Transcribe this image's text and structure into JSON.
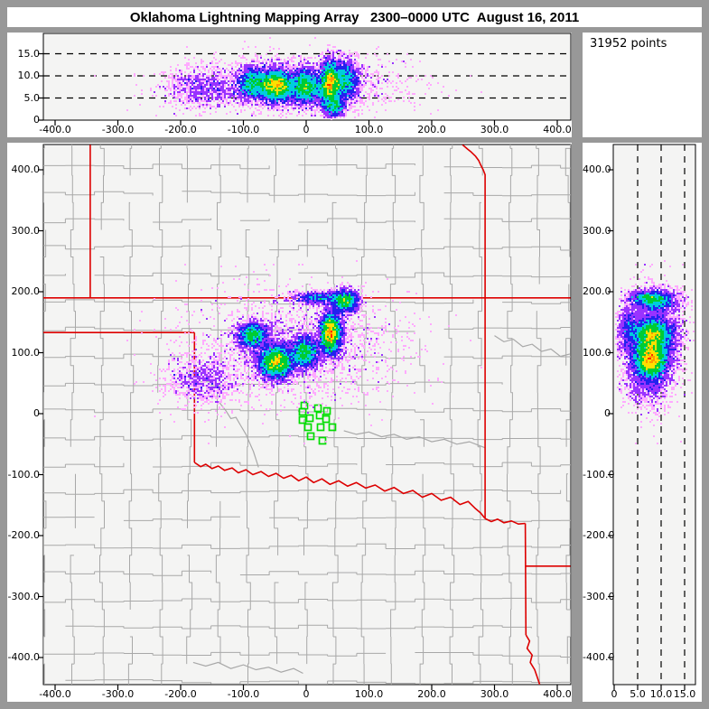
{
  "title": "Oklahoma Lightning Mapping Array   2300–0000 UTC  August 16, 2011",
  "points_label": "31952 points",
  "colors": {
    "window_bg": "#989898",
    "panel_bg": "#ffffff",
    "plot_bg": "#f4f4f3",
    "axis": "#000000",
    "county_line": "#a8a8a8",
    "state_border": "#dd0000",
    "station": "#00dd00",
    "ramp": {
      "pink": "#ffaaff",
      "violet": "#9933ff",
      "blue": "#2222ee",
      "cyan": "#00ccdd",
      "green": "#00cc33",
      "yellow": "#ffe000",
      "orange": "#ff9900",
      "red": "#ff2a00"
    }
  },
  "panels": {
    "top": {
      "y_ticks": [
        {
          "v": 15,
          "label": "15.0"
        },
        {
          "v": 10,
          "label": "10.0"
        },
        {
          "v": 5,
          "label": "5.0"
        },
        {
          "v": 0,
          "label": "0"
        }
      ],
      "x_ticks": [
        {
          "v": -400,
          "label": "-400.0"
        },
        {
          "v": -300,
          "label": "-300.0"
        },
        {
          "v": -200,
          "label": "-200.0"
        },
        {
          "v": -100,
          "label": "-100.0"
        },
        {
          "v": 0,
          "label": "0"
        },
        {
          "v": 100,
          "label": "100.0"
        },
        {
          "v": 200,
          "label": "200.0"
        },
        {
          "v": 300,
          "label": "300.0"
        },
        {
          "v": 400,
          "label": "400.0"
        }
      ],
      "dashed_alt_km": [
        5,
        10,
        15
      ]
    },
    "main": {
      "y_ticks": [
        {
          "v": 400,
          "label": "400.0"
        },
        {
          "v": 300,
          "label": "300.0"
        },
        {
          "v": 200,
          "label": "200.0"
        },
        {
          "v": 100,
          "label": "100.0"
        },
        {
          "v": 0,
          "label": "0"
        },
        {
          "v": -100,
          "label": "-100.0"
        },
        {
          "v": -200,
          "label": "-200.0"
        },
        {
          "v": -300,
          "label": "-300.0"
        },
        {
          "v": -400,
          "label": "-400.0"
        }
      ],
      "x_ticks": [
        {
          "v": -400,
          "label": "-400.0"
        },
        {
          "v": -300,
          "label": "-300.0"
        },
        {
          "v": -200,
          "label": "-200.0"
        },
        {
          "v": -100,
          "label": "-100.0"
        },
        {
          "v": 0,
          "label": "0"
        },
        {
          "v": 100,
          "label": "100.0"
        },
        {
          "v": 200,
          "label": "200.0"
        },
        {
          "v": 300,
          "label": "300.0"
        },
        {
          "v": 400,
          "label": "400.0"
        }
      ]
    },
    "right": {
      "y_ticks": [
        {
          "v": 400,
          "label": "400.0"
        },
        {
          "v": 300,
          "label": "300.0"
        },
        {
          "v": 200,
          "label": "200.0"
        },
        {
          "v": 100,
          "label": "100.0"
        },
        {
          "v": 0,
          "label": "0"
        },
        {
          "v": -100,
          "label": "-100.0"
        },
        {
          "v": -200,
          "label": "-200.0"
        },
        {
          "v": -300,
          "label": "-300.0"
        },
        {
          "v": -400,
          "label": "-400.0"
        }
      ],
      "x_ticks": [
        {
          "v": 0,
          "label": "0"
        },
        {
          "v": 5,
          "label": "5.0"
        },
        {
          "v": 10,
          "label": "10.0"
        },
        {
          "v": 15,
          "label": "15.0"
        }
      ],
      "dashed_alt_km": [
        5,
        10,
        15
      ]
    }
  },
  "chart_data": {
    "type": "scatter",
    "title": "Oklahoma Lightning Mapping Array 2300-0000 UTC August 16, 2011",
    "points_total": 31952,
    "layout": "three linked density panels: altitude vs east-west (top), plan view on Oklahoma county map (main), north-south vs altitude (right)",
    "axis_ranges": {
      "east_west_km": [
        -419,
        421
      ],
      "north_south_km": [
        -443,
        441
      ],
      "altitude_km": [
        0,
        19.5
      ]
    },
    "dashed_altitude_lines_km": [
      5,
      10,
      15
    ],
    "clusters": [
      {
        "name": "west-sparse-scatter",
        "x": -165,
        "y": 55,
        "alt": 7.0,
        "sx": 30,
        "sy": 20,
        "sz": 2.2,
        "n": 900
      },
      {
        "name": "diffuse-halo",
        "x": -20,
        "y": 110,
        "alt": 8.0,
        "sx": 85,
        "sy": 45,
        "sz": 3.0,
        "n": 2300
      },
      {
        "name": "storm-core-a",
        "x": -48,
        "y": 85,
        "alt": 7.8,
        "sx": 14,
        "sy": 14,
        "sz": 1.8,
        "n": 5200
      },
      {
        "name": "storm-arc-nw",
        "x": -85,
        "y": 128,
        "alt": 8.3,
        "sx": 12,
        "sy": 10,
        "sz": 1.8,
        "n": 2200
      },
      {
        "name": "storm-core-b",
        "x": -2,
        "y": 100,
        "alt": 7.6,
        "sx": 11,
        "sy": 13,
        "sz": 1.9,
        "n": 2600
      },
      {
        "name": "storm-core-c",
        "x": 38,
        "y": 130,
        "alt": 8.2,
        "sx": 8,
        "sy": 16,
        "sz": 2.4,
        "n": 4200
      },
      {
        "name": "storm-core-ne",
        "x": 62,
        "y": 185,
        "alt": 9.0,
        "sx": 11,
        "sy": 9,
        "sz": 2.4,
        "n": 2000
      },
      {
        "name": "low-level-c",
        "x": 45,
        "y": 140,
        "alt": 3.0,
        "sx": 9,
        "sy": 18,
        "sz": 1.2,
        "n": 900
      },
      {
        "name": "north-band",
        "x": 20,
        "y": 190,
        "alt": 7.0,
        "sx": 22,
        "sy": 5,
        "sz": 2.0,
        "n": 900
      }
    ],
    "stations_km": [
      [
        -2.9,
        13.3
      ],
      [
        18.7,
        8.9
      ],
      [
        33.1,
        4.4
      ],
      [
        -5.8,
        3.0
      ],
      [
        21.6,
        -3.0
      ],
      [
        5.8,
        -7.4
      ],
      [
        31.7,
        -8.9
      ],
      [
        -5.8,
        -10.4
      ],
      [
        2.9,
        -22.2
      ],
      [
        23.0,
        -22.2
      ],
      [
        41.7,
        -22.2
      ],
      [
        7.2,
        -37.0
      ],
      [
        25.9,
        -44.4
      ]
    ],
    "state_borders_km": [
      [
        [
          -419,
          190
        ],
        [
          421,
          190
        ]
      ],
      [
        [
          -344,
          441
        ],
        [
          -344,
          190
        ]
      ],
      [
        [
          -419,
          133
        ],
        [
          -178,
          133
        ]
      ],
      [
        [
          -178,
          133
        ],
        [
          -178,
          -80
        ]
      ],
      [
        [
          -178,
          -80
        ],
        [
          -168,
          -87
        ],
        [
          -160,
          -83
        ],
        [
          -150,
          -90
        ],
        [
          -140,
          -86
        ],
        [
          -130,
          -93
        ],
        [
          -118,
          -89
        ],
        [
          -108,
          -97
        ],
        [
          -96,
          -92
        ],
        [
          -85,
          -100
        ],
        [
          -72,
          -95
        ],
        [
          -60,
          -103
        ],
        [
          -48,
          -98
        ],
        [
          -36,
          -106
        ],
        [
          -24,
          -101
        ],
        [
          -12,
          -110
        ],
        [
          0,
          -104
        ],
        [
          12,
          -113
        ],
        [
          25,
          -107
        ],
        [
          38,
          -116
        ],
        [
          52,
          -110
        ],
        [
          66,
          -119
        ],
        [
          80,
          -113
        ],
        [
          95,
          -122
        ],
        [
          110,
          -117
        ],
        [
          125,
          -127
        ],
        [
          140,
          -121
        ],
        [
          155,
          -131
        ],
        [
          170,
          -126
        ],
        [
          185,
          -137
        ],
        [
          200,
          -131
        ],
        [
          215,
          -142
        ],
        [
          230,
          -137
        ],
        [
          245,
          -149
        ],
        [
          258,
          -144
        ],
        [
          270,
          -156
        ],
        [
          278,
          -163
        ],
        [
          285,
          -172
        ]
      ],
      [
        [
          285,
          190
        ],
        [
          285,
          -172
        ]
      ],
      [
        [
          249,
          441
        ],
        [
          257,
          434
        ],
        [
          263,
          429
        ],
        [
          270,
          422
        ],
        [
          275,
          415
        ],
        [
          278,
          408
        ],
        [
          282,
          400
        ],
        [
          285,
          392
        ],
        [
          285,
          190
        ]
      ],
      [
        [
          285,
          -172
        ],
        [
          295,
          -177
        ],
        [
          305,
          -173
        ],
        [
          315,
          -179
        ],
        [
          327,
          -176
        ],
        [
          338,
          -181
        ],
        [
          349,
          -180
        ]
      ],
      [
        [
          349,
          -180
        ],
        [
          350,
          -363
        ]
      ],
      [
        [
          349,
          -250
        ],
        [
          421,
          -250
        ]
      ],
      [
        [
          350,
          -363
        ],
        [
          356,
          -373
        ],
        [
          352,
          -385
        ],
        [
          360,
          -396
        ],
        [
          357,
          -408
        ],
        [
          364,
          -420
        ],
        [
          368,
          -432
        ],
        [
          372,
          -444
        ]
      ]
    ],
    "rivers_km": [
      [
        [
          -138,
          18
        ],
        [
          -128,
          5
        ],
        [
          -120,
          -8
        ],
        [
          -112,
          -6
        ],
        [
          -104,
          -20
        ],
        [
          -96,
          -34
        ],
        [
          -90,
          -48
        ],
        [
          -84,
          -62
        ],
        [
          -80,
          -75
        ],
        [
          -76,
          -88
        ]
      ],
      [
        [
          60,
          -28
        ],
        [
          80,
          -34
        ],
        [
          100,
          -30
        ],
        [
          120,
          -38
        ],
        [
          140,
          -34
        ],
        [
          160,
          -42
        ],
        [
          180,
          -38
        ],
        [
          200,
          -46
        ],
        [
          220,
          -42
        ],
        [
          240,
          -50
        ],
        [
          260,
          -46
        ],
        [
          280,
          -54
        ],
        [
          285,
          -56
        ]
      ],
      [
        [
          300,
          128
        ],
        [
          315,
          118
        ],
        [
          330,
          122
        ],
        [
          345,
          110
        ],
        [
          360,
          114
        ],
        [
          375,
          102
        ],
        [
          390,
          106
        ],
        [
          405,
          94
        ],
        [
          420,
          98
        ]
      ],
      [
        [
          -180,
          -408
        ],
        [
          -160,
          -414
        ],
        [
          -140,
          -408
        ],
        [
          -120,
          -418
        ],
        [
          -100,
          -412
        ],
        [
          -80,
          -420
        ],
        [
          -60,
          -416
        ],
        [
          -40,
          -424
        ],
        [
          -20,
          -418
        ],
        [
          -5,
          -426
        ]
      ]
    ]
  }
}
